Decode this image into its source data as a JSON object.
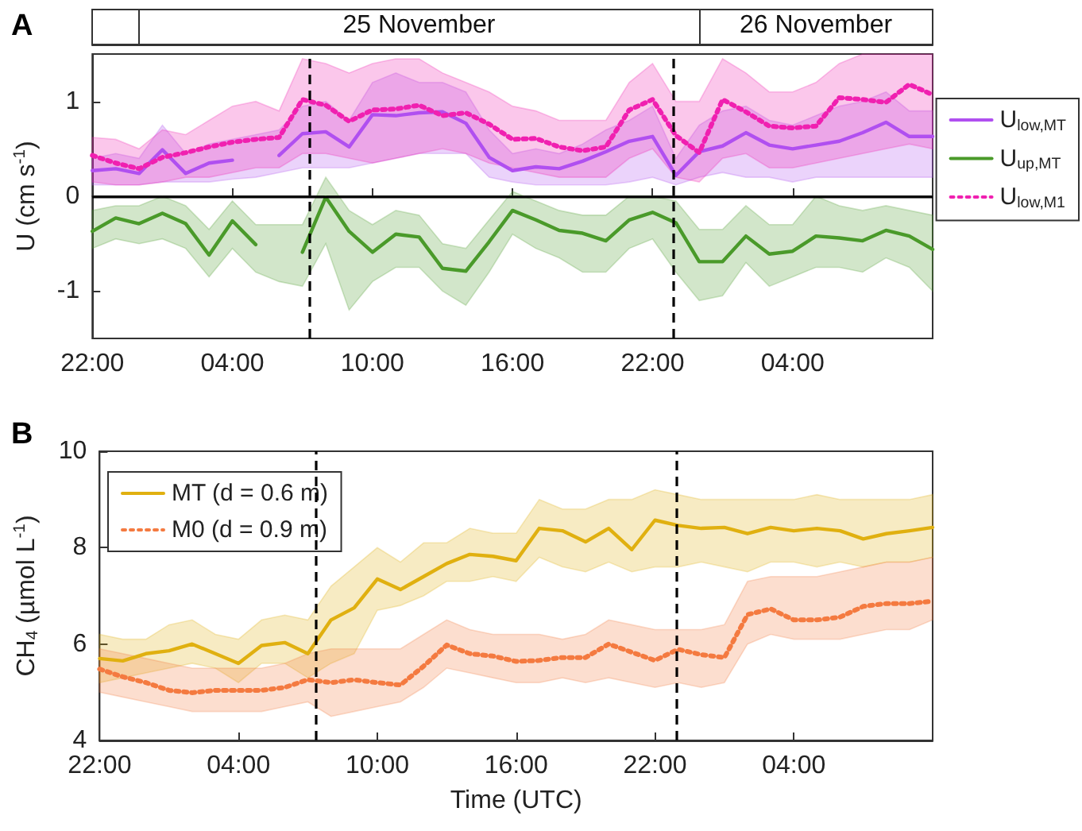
{
  "chart_data": [
    {
      "type": "line",
      "title": "A",
      "ylabel": "U (cm s$^{-1}$)",
      "x": [
        "--11-24T22:00",
        "--11-24T23:00",
        "--11-25T00:00",
        "--11-25T01:00",
        "--11-25T02:00",
        "--11-25T03:00",
        "--11-25T04:00",
        "--11-25T05:00",
        "--11-25T06:00",
        "--11-25T07:00",
        "--11-25T08:00",
        "--11-25T09:00",
        "--11-25T10:00",
        "--11-25T11:00",
        "--11-25T12:00",
        "--11-25T13:00",
        "--11-25T14:00",
        "--11-25T15:00",
        "--11-25T16:00",
        "--11-25T17:00",
        "--11-25T18:00",
        "--11-25T19:00",
        "--11-25T20:00",
        "--11-25T21:00",
        "--11-25T22:00",
        "--11-25T23:00",
        "--11-26T00:00",
        "--11-26T01:00",
        "--11-26T02:00",
        "--11-26T03:00",
        "--11-26T04:00",
        "--11-26T05:00",
        "--11-26T06:00",
        "--11-26T07:00",
        "--11-26T08:00",
        "--11-26T09:00",
        "--11-26T10:00"
      ],
      "series": [
        {
          "name": "U$_{low,MT}$",
          "color": "#b04ff0",
          "line_style": "solid",
          "values": [
            0.27,
            0.29,
            0.24,
            0.49,
            0.24,
            0.35,
            0.38,
            null,
            0.43,
            0.66,
            0.68,
            0.52,
            0.86,
            0.85,
            0.88,
            0.89,
            0.77,
            0.41,
            0.27,
            0.31,
            0.29,
            0.37,
            0.47,
            0.58,
            0.63,
            0.22,
            0.47,
            0.53,
            0.67,
            0.54,
            0.5,
            0.54,
            0.58,
            0.67,
            0.78,
            0.63,
            0.63
          ],
          "lower": [
            0.12,
            0.12,
            0.12,
            0.15,
            0.15,
            0.15,
            0.18,
            0.2,
            0.25,
            0.3,
            0.3,
            0.3,
            0.35,
            0.4,
            0.45,
            0.45,
            0.45,
            0.2,
            0.15,
            0.12,
            0.12,
            0.12,
            0.12,
            0.15,
            0.2,
            0.12,
            0.2,
            0.25,
            0.2,
            0.2,
            0.15,
            0.2,
            0.2,
            0.2,
            0.2,
            0.2,
            0.2
          ],
          "upper": [
            0.4,
            0.45,
            0.4,
            0.75,
            0.45,
            0.55,
            0.6,
            0.65,
            0.7,
            0.95,
            1.0,
            0.8,
            1.2,
            1.3,
            1.2,
            1.2,
            1.1,
            0.7,
            0.45,
            0.5,
            0.45,
            0.55,
            0.7,
            0.8,
            0.95,
            0.4,
            0.75,
            0.9,
            0.95,
            0.8,
            0.75,
            0.85,
            0.95,
            1.0,
            1.1,
            0.9,
            0.9
          ]
        },
        {
          "name": "U$_{up,MT}$",
          "color": "#4a9a2a",
          "line_style": "solid",
          "values": [
            -0.37,
            -0.23,
            -0.29,
            -0.18,
            -0.29,
            -0.62,
            -0.26,
            -0.51,
            null,
            -0.59,
            -0.01,
            -0.37,
            -0.59,
            -0.4,
            -0.43,
            -0.76,
            -0.79,
            -0.48,
            -0.15,
            -0.25,
            -0.36,
            -0.39,
            -0.47,
            -0.25,
            -0.17,
            -0.28,
            -0.69,
            -0.69,
            -0.42,
            -0.61,
            -0.58,
            -0.42,
            -0.44,
            -0.47,
            -0.36,
            -0.42,
            -0.56
          ],
          "lower": [
            -0.55,
            -0.45,
            -0.5,
            -0.45,
            -0.55,
            -0.85,
            -0.55,
            -0.8,
            -0.9,
            -0.95,
            -0.5,
            -1.2,
            -0.9,
            -0.75,
            -0.75,
            -1.0,
            -1.15,
            -0.8,
            -0.4,
            -0.55,
            -0.65,
            -0.8,
            -0.8,
            -0.55,
            -0.45,
            -0.8,
            -1.1,
            -1.05,
            -0.7,
            -0.95,
            -0.85,
            -0.75,
            -0.75,
            -0.8,
            -0.65,
            -0.75,
            -1.0
          ],
          "upper": [
            -0.15,
            -0.1,
            -0.1,
            0.0,
            -0.1,
            -0.35,
            -0.05,
            -0.3,
            -0.3,
            -0.3,
            0.2,
            -0.15,
            -0.3,
            -0.15,
            -0.2,
            -0.5,
            -0.55,
            -0.25,
            0.05,
            -0.05,
            -0.15,
            -0.2,
            -0.2,
            0.0,
            0.0,
            -0.05,
            -0.35,
            -0.35,
            -0.1,
            -0.3,
            -0.3,
            0.0,
            -0.1,
            -0.15,
            -0.1,
            -0.15,
            -0.2
          ]
        },
        {
          "name": "U$_{low,M1}$",
          "color": "#f020b0",
          "line_style": "dotted",
          "values": [
            0.43,
            0.35,
            0.29,
            0.41,
            0.46,
            0.52,
            0.57,
            0.6,
            0.62,
            1.02,
            0.96,
            0.79,
            0.91,
            0.92,
            0.96,
            0.85,
            0.88,
            0.76,
            0.6,
            0.61,
            0.52,
            0.48,
            0.52,
            0.91,
            1.02,
            0.64,
            0.46,
            1.02,
            0.89,
            0.74,
            0.72,
            0.74,
            1.04,
            1.02,
            0.99,
            1.18,
            1.07
          ],
          "lower": [
            0.15,
            0.12,
            0.12,
            0.15,
            0.2,
            0.2,
            0.25,
            0.3,
            0.3,
            0.45,
            0.45,
            0.4,
            0.35,
            0.4,
            0.45,
            0.5,
            0.45,
            0.35,
            0.3,
            0.25,
            0.2,
            0.2,
            0.2,
            0.4,
            0.5,
            0.2,
            0.15,
            0.4,
            0.45,
            0.3,
            0.3,
            0.35,
            0.4,
            0.45,
            0.5,
            0.55,
            0.5
          ],
          "upper": [
            0.62,
            0.6,
            0.5,
            0.7,
            0.65,
            0.8,
            0.95,
            1.0,
            0.9,
            1.45,
            1.4,
            1.3,
            1.4,
            1.45,
            1.45,
            1.3,
            1.2,
            1.1,
            0.95,
            0.9,
            0.8,
            0.8,
            0.8,
            1.2,
            1.4,
            1.0,
            1.0,
            1.45,
            1.3,
            1.1,
            1.1,
            1.2,
            1.4,
            1.5,
            1.5,
            1.5,
            1.5
          ]
        }
      ],
      "xlim": [
        "--11-24T22:00",
        "--11-26T10:00"
      ],
      "xticks": [
        {
          "value": "--11-24T22:00",
          "label": "22:00"
        },
        {
          "value": "--11-25T04:00",
          "label": "04:00"
        },
        {
          "value": "--11-25T10:00",
          "label": "10:00"
        },
        {
          "value": "--11-25T16:00",
          "label": "16:00"
        },
        {
          "value": "--11-25T22:00",
          "label": "22:00"
        },
        {
          "value": "--11-26T04:00",
          "label": "04:00"
        }
      ],
      "x2lim": [
        "--11-24T22:00",
        "--11-26T10:00"
      ],
      "x2ticks": [
        {
          "value": "--11-25T00:00",
          "label": null
        },
        {
          "value": "--11-25T12:00",
          "label": "25 November"
        },
        {
          "value": "--11-26T00:00",
          "label": null
        },
        {
          "value": "--11-26T05:00",
          "label": "26 November"
        }
      ],
      "ylim": [
        -1.5,
        1.5
      ],
      "yticks": [
        -1,
        0,
        1
      ],
      "legend": "right",
      "marker": "none",
      "ref_lines": [
        {
          "axis": "y",
          "value": 0,
          "color": "#000000",
          "line_style": "solid"
        },
        {
          "axis": "x",
          "value": "--11-25T07:20",
          "color": "#000000",
          "line_style": "dashed"
        },
        {
          "axis": "x",
          "value": "--11-25T22:55",
          "color": "#000000",
          "line_style": "dashed"
        }
      ]
    },
    {
      "type": "line",
      "title": "B",
      "xlabel": "Time (UTC)",
      "ylabel": "CH$_{4}$ (µmol L$^{-1}$)",
      "x": [
        "--11-24T22:00",
        "--11-24T23:00",
        "--11-25T00:00",
        "--11-25T01:00",
        "--11-25T02:00",
        "--11-25T03:00",
        "--11-25T04:00",
        "--11-25T05:00",
        "--11-25T06:00",
        "--11-25T07:00",
        "--11-25T08:00",
        "--11-25T09:00",
        "--11-25T10:00",
        "--11-25T11:00",
        "--11-25T12:00",
        "--11-25T13:00",
        "--11-25T14:00",
        "--11-25T15:00",
        "--11-25T16:00",
        "--11-25T17:00",
        "--11-25T18:00",
        "--11-25T19:00",
        "--11-25T20:00",
        "--11-25T21:00",
        "--11-25T22:00",
        "--11-25T23:00",
        "--11-26T00:00",
        "--11-26T01:00",
        "--11-26T02:00",
        "--11-26T03:00",
        "--11-26T04:00",
        "--11-26T05:00",
        "--11-26T06:00",
        "--11-26T07:00",
        "--11-26T08:00",
        "--11-26T09:00",
        "--11-26T10:00"
      ],
      "series": [
        {
          "name": "MT (d = 0.6 m)",
          "color": "#e0b010",
          "line_style": "solid",
          "values": [
            5.7,
            5.65,
            5.8,
            5.86,
            6.0,
            5.8,
            5.6,
            5.97,
            6.03,
            5.8,
            6.5,
            6.75,
            7.35,
            7.13,
            7.4,
            7.67,
            7.86,
            7.82,
            7.73,
            8.4,
            8.35,
            8.12,
            8.4,
            7.96,
            8.57,
            8.46,
            8.4,
            8.42,
            8.29,
            8.42,
            8.35,
            8.4,
            8.35,
            8.18,
            8.29,
            8.35,
            8.42
          ],
          "lower": [
            5.2,
            5.3,
            5.4,
            5.5,
            5.6,
            5.5,
            5.2,
            5.6,
            5.6,
            5.3,
            5.6,
            5.8,
            6.7,
            6.8,
            7.0,
            7.3,
            7.3,
            7.4,
            7.3,
            7.8,
            7.6,
            7.5,
            7.7,
            7.5,
            7.6,
            7.6,
            7.7,
            7.6,
            7.5,
            7.7,
            7.7,
            7.6,
            7.7,
            7.6,
            7.7,
            7.7,
            7.8
          ],
          "upper": [
            6.2,
            6.1,
            6.1,
            6.4,
            6.5,
            6.2,
            6.1,
            6.5,
            6.6,
            6.5,
            7.2,
            7.6,
            8.0,
            7.7,
            8.1,
            8.1,
            8.4,
            8.3,
            8.3,
            9.0,
            8.8,
            8.8,
            9.0,
            9.0,
            9.2,
            9.1,
            9.0,
            9.0,
            9.0,
            9.0,
            9.0,
            9.1,
            9.0,
            9.0,
            9.0,
            9.0,
            9.1
          ]
        },
        {
          "name": "M0 (d = 0.9 m)",
          "color": "#f47a40",
          "line_style": "dotted",
          "values": [
            5.48,
            5.32,
            5.2,
            5.04,
            4.99,
            5.04,
            5.04,
            5.04,
            5.1,
            5.26,
            5.2,
            5.26,
            5.2,
            5.15,
            5.54,
            5.98,
            5.8,
            5.75,
            5.64,
            5.66,
            5.72,
            5.72,
            6.0,
            5.83,
            5.66,
            5.89,
            5.78,
            5.72,
            6.61,
            6.73,
            6.5,
            6.5,
            6.56,
            6.78,
            6.84,
            6.84,
            6.89
          ],
          "lower": [
            5.0,
            4.9,
            4.8,
            4.7,
            4.6,
            4.6,
            4.6,
            4.6,
            4.7,
            4.8,
            4.5,
            4.6,
            4.7,
            4.8,
            5.1,
            5.5,
            5.4,
            5.3,
            5.2,
            5.2,
            5.3,
            5.2,
            5.3,
            5.2,
            5.1,
            5.2,
            5.1,
            5.2,
            6.0,
            6.2,
            6.1,
            6.1,
            6.1,
            6.2,
            6.3,
            6.3,
            6.5
          ],
          "upper": [
            5.9,
            5.8,
            5.7,
            5.6,
            5.5,
            5.5,
            5.5,
            5.5,
            5.6,
            5.8,
            5.9,
            5.9,
            5.9,
            5.9,
            6.2,
            6.5,
            6.3,
            6.2,
            6.2,
            6.2,
            6.1,
            6.2,
            6.5,
            6.4,
            6.3,
            6.3,
            6.3,
            6.4,
            7.3,
            7.4,
            7.4,
            7.4,
            7.5,
            7.6,
            7.7,
            7.7,
            7.8
          ]
        }
      ],
      "xlim": [
        "--11-24T22:00",
        "--11-26T10:00"
      ],
      "xticks": [
        {
          "value": "--11-24T22:00",
          "label": "22:00"
        },
        {
          "value": "--11-25T04:00",
          "label": "04:00"
        },
        {
          "value": "--11-25T10:00",
          "label": "10:00"
        },
        {
          "value": "--11-25T16:00",
          "label": "16:00"
        },
        {
          "value": "--11-25T22:00",
          "label": "22:00"
        },
        {
          "value": "--11-26T04:00",
          "label": "04:00"
        }
      ],
      "ylim": [
        4,
        10
      ],
      "yticks": [
        4,
        6,
        8,
        10
      ],
      "legend": "top left",
      "marker": "none",
      "ref_lines": [
        {
          "axis": "x",
          "value": "--11-25T07:20",
          "color": "#000000",
          "line_style": "dashed"
        },
        {
          "axis": "x",
          "value": "--11-25T22:55",
          "color": "#000000",
          "line_style": "dashed"
        }
      ]
    }
  ]
}
